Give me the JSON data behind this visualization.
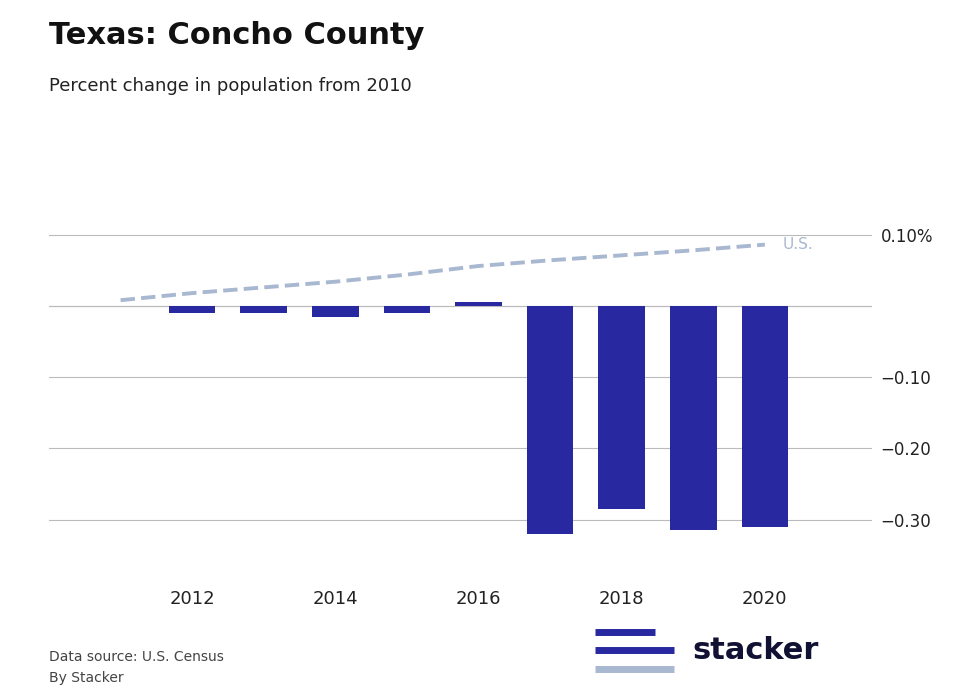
{
  "title": "Texas: Concho County",
  "subtitle": "Percent change in population from 2010",
  "bar_years": [
    2011,
    2012,
    2013,
    2014,
    2015,
    2016,
    2017,
    2018,
    2019,
    2020
  ],
  "county_values": [
    0.0,
    -0.01,
    -0.01,
    -0.015,
    -0.01,
    0.005,
    -0.32,
    -0.285,
    -0.315,
    -0.3107
  ],
  "us_values": [
    0.008,
    0.018,
    0.026,
    0.034,
    0.044,
    0.056,
    0.064,
    0.071,
    0.078,
    0.086
  ],
  "bar_color": "#2828a0",
  "us_line_color": "#a8b8d0",
  "ylim_low": -0.375,
  "ylim_high": 0.135,
  "yticks": [
    0.1,
    0.0,
    -0.1,
    -0.2,
    -0.3
  ],
  "ytick_labels": [
    "0.10%",
    "",
    "−0.10",
    "−0.20",
    "−0.30"
  ],
  "xticks": [
    2012,
    2014,
    2016,
    2018,
    2020
  ],
  "background_color": "#ffffff",
  "grid_color": "#bbbbbb",
  "footer_source": "Data source: U.S. Census",
  "footer_by": "By Stacker",
  "us_label": "U.S.",
  "title_fontsize": 22,
  "subtitle_fontsize": 13,
  "bar_width": 0.65
}
